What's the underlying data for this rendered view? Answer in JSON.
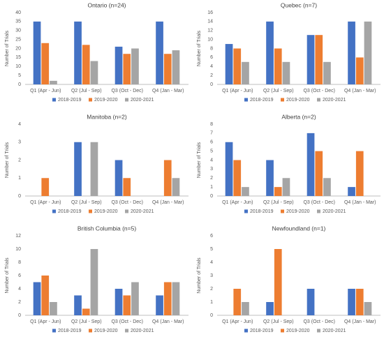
{
  "chart_data": [
    {
      "type": "bar",
      "title": "Ontario (n=24)",
      "y_label": "Number of Trials",
      "categories": [
        "Q1 (Apr - Jun)",
        "Q2 (Jul - Sep)",
        "Q3 (Oct - Dec)",
        "Q4 (Jan - Mar)"
      ],
      "series": [
        {
          "name": "2018-2019",
          "color": "#4472c4",
          "values": [
            35,
            35,
            21,
            35
          ]
        },
        {
          "name": "2019-2020",
          "color": "#ed7d31",
          "values": [
            23,
            22,
            17,
            17
          ]
        },
        {
          "name": "2020-2021",
          "color": "#a5a5a5",
          "values": [
            2,
            13,
            20,
            19
          ]
        }
      ],
      "ylim": [
        0,
        40
      ],
      "yticks": [
        0,
        5,
        10,
        15,
        20,
        25,
        30,
        35,
        40
      ],
      "grid": false
    },
    {
      "type": "bar",
      "title": "Quebec (n=7)",
      "y_label": "Number of Trials",
      "categories": [
        "Q1 (Apr - Jun)",
        "Q2 (Jul - Sep)",
        "Q3 (Oct - Dec)",
        "Q4 (Jan - Mar)"
      ],
      "series": [
        {
          "name": "2018-2019",
          "color": "#4472c4",
          "values": [
            9,
            14,
            11,
            14
          ]
        },
        {
          "name": "2019-2020",
          "color": "#ed7d31",
          "values": [
            8,
            8,
            11,
            6
          ]
        },
        {
          "name": "2020-2021",
          "color": "#a5a5a5",
          "values": [
            5,
            5,
            5,
            14
          ]
        }
      ],
      "ylim": [
        0,
        16
      ],
      "yticks": [
        0,
        2,
        4,
        6,
        8,
        10,
        12,
        14,
        16
      ],
      "grid": false
    },
    {
      "type": "bar",
      "title": "Manitoba (n=2)",
      "y_label": "Number of Trials",
      "categories": [
        "Q1 (Apr - Jun)",
        "Q2 (Jul - Sep)",
        "Q3 (Oct - Dec)",
        "Q4 (Jan - Mar)"
      ],
      "series": [
        {
          "name": "2018-2019",
          "color": "#4472c4",
          "values": [
            0,
            3,
            2,
            0
          ]
        },
        {
          "name": "2019-2020",
          "color": "#ed7d31",
          "values": [
            1,
            0,
            1,
            2
          ]
        },
        {
          "name": "2020-2021",
          "color": "#a5a5a5",
          "values": [
            0,
            3,
            0,
            1
          ]
        }
      ],
      "ylim": [
        0,
        4
      ],
      "yticks": [
        0,
        1,
        2,
        3,
        4
      ],
      "grid": false
    },
    {
      "type": "bar",
      "title": "Alberta (n=2)",
      "y_label": "Number of Trials",
      "categories": [
        "Q1 (Apr - Jun)",
        "Q2 (Jul - Sep)",
        "Q3 (Oct - Dec)",
        "Q4 (Jan - Mar)"
      ],
      "series": [
        {
          "name": "2018-2019",
          "color": "#4472c4",
          "values": [
            6,
            4,
            7,
            1
          ]
        },
        {
          "name": "2019-2020",
          "color": "#ed7d31",
          "values": [
            4,
            1,
            5,
            5
          ]
        },
        {
          "name": "2020-2021",
          "color": "#a5a5a5",
          "values": [
            1,
            2,
            2,
            0
          ]
        }
      ],
      "ylim": [
        0,
        8
      ],
      "yticks": [
        0,
        1,
        2,
        3,
        4,
        5,
        6,
        7,
        8
      ],
      "grid": false
    },
    {
      "type": "bar",
      "title": "British Columbia (n=5)",
      "y_label": "Number of Trials",
      "categories": [
        "Q1 (Apr - Jun)",
        "Q2 (Jul - Sep)",
        "Q3 (Oct - Dec)",
        "Q4 (Jan - Mar)"
      ],
      "series": [
        {
          "name": "2018-2019",
          "color": "#4472c4",
          "values": [
            5,
            3,
            4,
            3
          ]
        },
        {
          "name": "2019-2020",
          "color": "#ed7d31",
          "values": [
            6,
            1,
            3,
            5
          ]
        },
        {
          "name": "2020-2021",
          "color": "#a5a5a5",
          "values": [
            2,
            10,
            5,
            5
          ]
        }
      ],
      "ylim": [
        0,
        12
      ],
      "yticks": [
        0,
        2,
        4,
        6,
        8,
        10,
        12
      ],
      "grid": false
    },
    {
      "type": "bar",
      "title": "Newfoundland (n=1)",
      "y_label": "Number of Trials",
      "categories": [
        "Q1 (Apr - Jun)",
        "Q2 (Jul - Sep)",
        "Q3 (Oct - Dec)",
        "Q4 (Jan - Mar)"
      ],
      "series": [
        {
          "name": "2018-2019",
          "color": "#4472c4",
          "values": [
            0,
            1,
            2,
            2
          ]
        },
        {
          "name": "2019-2020",
          "color": "#ed7d31",
          "values": [
            2,
            5,
            0,
            2
          ]
        },
        {
          "name": "2020-2021",
          "color": "#a5a5a5",
          "values": [
            1,
            0,
            0,
            1
          ]
        }
      ],
      "ylim": [
        0,
        6
      ],
      "yticks": [
        0,
        1,
        2,
        3,
        4,
        5,
        6
      ],
      "grid": false
    }
  ]
}
